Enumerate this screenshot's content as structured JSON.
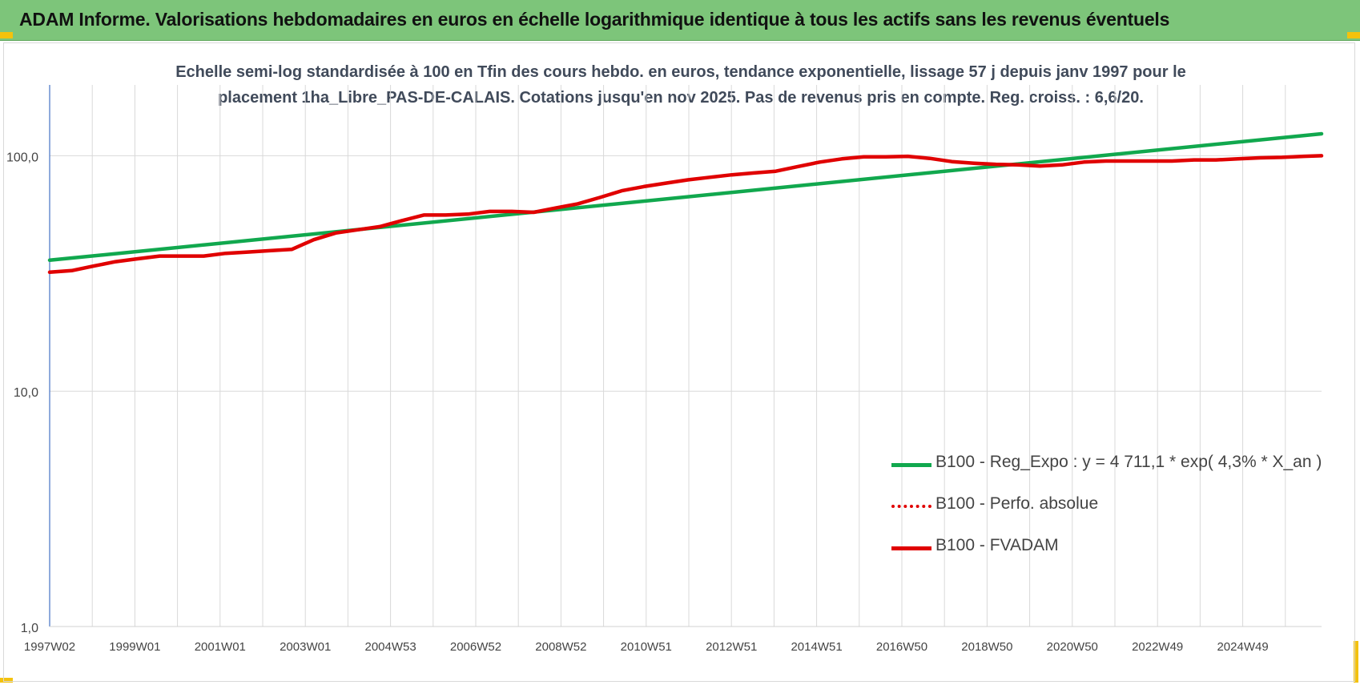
{
  "banner": {
    "title": "ADAM Informe. Valorisations hebdomadaires en euros en échelle logarithmique identique à tous les actifs sans les revenus éventuels"
  },
  "colors": {
    "banner": "#7dc57a",
    "accent_corner": "#f4c20d",
    "reg_expo": "#11a84e",
    "perfo_absolue": "#e00000",
    "fvadam": "#e00000",
    "grid": "#d9d9d9",
    "axis": "#4472c4"
  },
  "chart_data": {
    "type": "line",
    "title_line1": "Echelle semi-log standardisée à 100 en Tfin des cours hebdo. en euros, tendance exponentielle, lissage 57 j depuis janv 1997 pour le",
    "title_line2": "placement 1ha_Libre_PAS-DE-CALAIS. Cotations jusqu'en nov 2025. Pas de revenus pris en compte. Reg. croiss. : 6,6/20.",
    "y_scale": "log",
    "ylim": [
      1,
      200
    ],
    "y_ticks": [
      {
        "value": 1,
        "label": "1,0"
      },
      {
        "value": 10,
        "label": "10,0"
      },
      {
        "value": 100,
        "label": "100,0"
      }
    ],
    "x_range": [
      1997.0,
      2025.9
    ],
    "x_tick_labels": [
      "1997W02",
      "1999W01",
      "2001W01",
      "2003W01",
      "2004W53",
      "2006W52",
      "2008W52",
      "2010W51",
      "2012W51",
      "2014W51",
      "2016W50",
      "2018W50",
      "2020W50",
      "2022W49",
      "2024W49"
    ],
    "grid": "vertical",
    "legend_position": "bottom-right",
    "series": [
      {
        "name": "B100 - Reg_Expo : y = 4 711,1 * exp( 4,3% *  X_an )",
        "style": "solid-green",
        "x": [
          1997.0,
          2025.9
        ],
        "y": [
          36.0,
          124.0
        ]
      },
      {
        "name": "B100 - Perfo. absolue",
        "style": "dotted-red",
        "x": [],
        "y": []
      },
      {
        "name": "B100 - FVADAM",
        "style": "solid-red",
        "x": [
          1997.0,
          1997.5,
          1998.0,
          1998.5,
          1999.0,
          1999.5,
          2000.0,
          2000.5,
          2001.0,
          2001.5,
          2002.0,
          2002.5,
          2003.0,
          2003.5,
          2004.0,
          2004.5,
          2005.0,
          2005.5,
          2006.0,
          2006.5,
          2007.0,
          2007.5,
          2008.0,
          2008.5,
          2009.0,
          2009.5,
          2010.0,
          2010.5,
          2011.0,
          2011.5,
          2012.0,
          2012.5,
          2013.0,
          2013.5,
          2014.0,
          2014.5,
          2015.0,
          2015.5,
          2016.0,
          2016.5,
          2017.0,
          2017.5,
          2018.0,
          2018.5,
          2019.0,
          2019.5,
          2020.0,
          2020.5,
          2021.0,
          2021.5,
          2022.0,
          2022.5,
          2023.0,
          2023.5,
          2024.0,
          2024.5,
          2025.0,
          2025.5,
          2025.9
        ],
        "y": [
          32,
          32.5,
          34,
          35.5,
          36.5,
          37.5,
          37.5,
          37.5,
          38.5,
          39,
          39.5,
          40,
          44,
          47,
          48.5,
          50,
          53,
          56,
          56,
          56.5,
          58,
          58,
          57.5,
          60,
          62.5,
          66.5,
          71,
          74,
          76.5,
          79,
          81,
          83,
          84.5,
          86,
          90,
          94,
          97,
          99,
          99,
          99.5,
          97.5,
          94.5,
          93,
          92,
          91.5,
          90.5,
          91.5,
          94,
          95,
          95,
          95,
          95,
          96,
          96,
          97,
          98,
          98.5,
          99.5,
          100
        ]
      }
    ]
  }
}
